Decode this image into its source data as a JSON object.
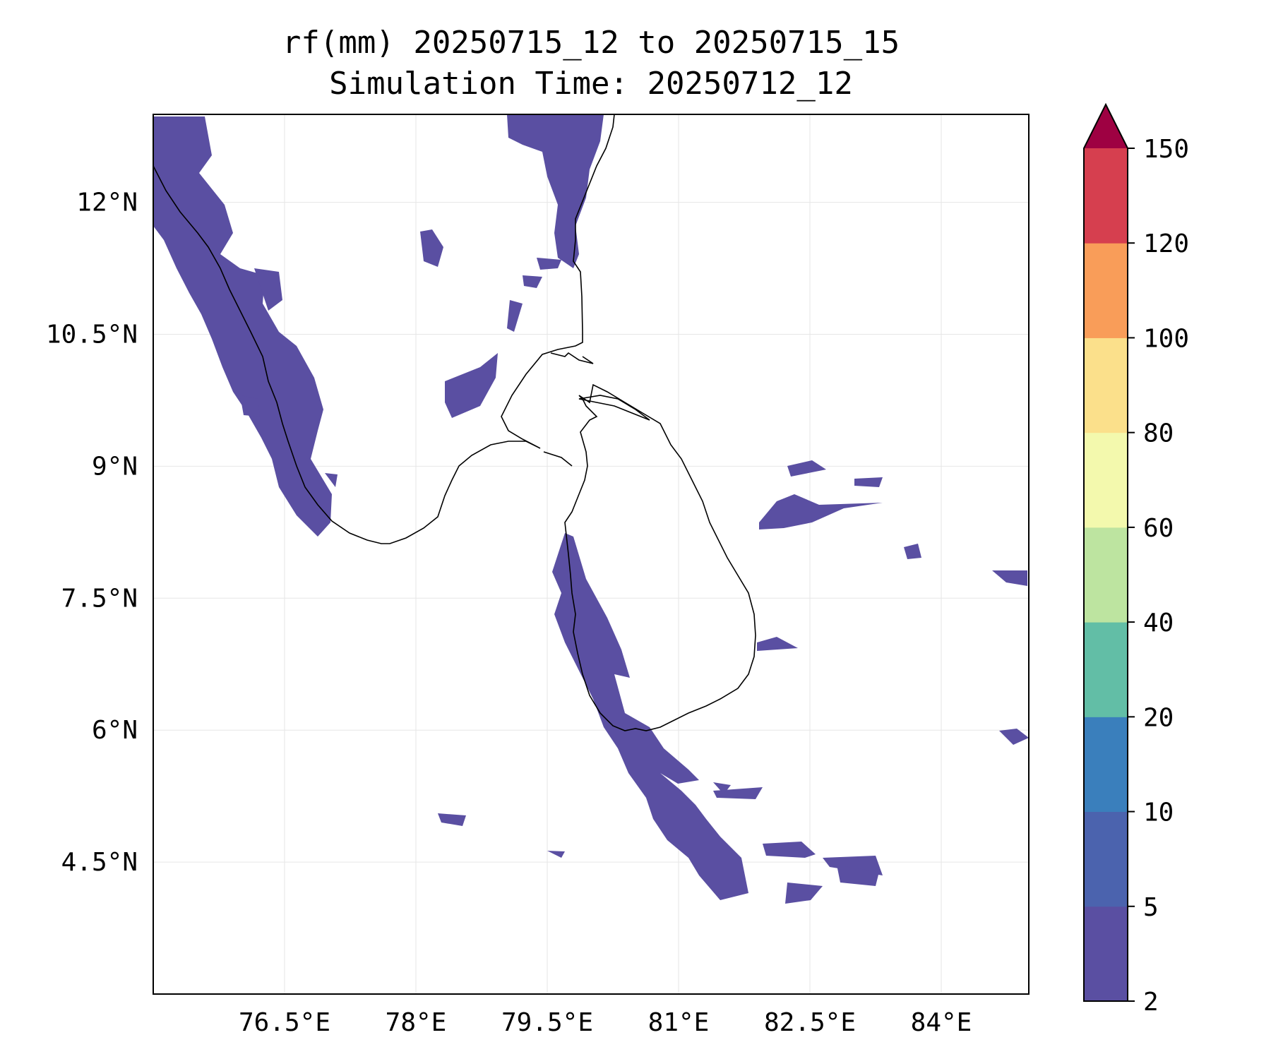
{
  "title": {
    "line1": "rf(mm) 20250715_12 to 20250715_15",
    "line2": "Simulation Time: 20250712_12"
  },
  "map": {
    "lon_range": [
      75.0,
      85.0
    ],
    "lat_range": [
      3.0,
      13.0
    ],
    "x_ticks": [
      {
        "value": 76.5,
        "label": "76.5°E"
      },
      {
        "value": 78.0,
        "label": "78°E"
      },
      {
        "value": 79.5,
        "label": "79.5°E"
      },
      {
        "value": 81.0,
        "label": "81°E"
      },
      {
        "value": 82.5,
        "label": "82.5°E"
      },
      {
        "value": 84.0,
        "label": "84°E"
      }
    ],
    "y_ticks": [
      {
        "value": 12.0,
        "label": "12°N"
      },
      {
        "value": 10.5,
        "label": "10.5°N"
      },
      {
        "value": 9.0,
        "label": "9°N"
      },
      {
        "value": 7.5,
        "label": "7.5°N"
      },
      {
        "value": 6.0,
        "label": "6°N"
      },
      {
        "value": 4.5,
        "label": "4.5°N"
      }
    ],
    "grid": true,
    "coastline_color": "#000000",
    "rain_color_light": "#5a4fa2",
    "rain_color_dark": "#4b63ae"
  },
  "colorbar": {
    "extend": "max",
    "levels": [
      {
        "label": "2"
      },
      {
        "label": "5"
      },
      {
        "label": "10"
      },
      {
        "label": "20"
      },
      {
        "label": "40"
      },
      {
        "label": "60"
      },
      {
        "label": "80"
      },
      {
        "label": "100"
      },
      {
        "label": "120"
      },
      {
        "label": "150"
      }
    ],
    "colors": [
      "#5a4fa2",
      "#4b63ae",
      "#3a7fbc",
      "#62bea6",
      "#bde4a0",
      "#f3f9ad",
      "#fbe08b",
      "#f99d59",
      "#d63f4f"
    ],
    "extend_color": "#9e0142"
  }
}
